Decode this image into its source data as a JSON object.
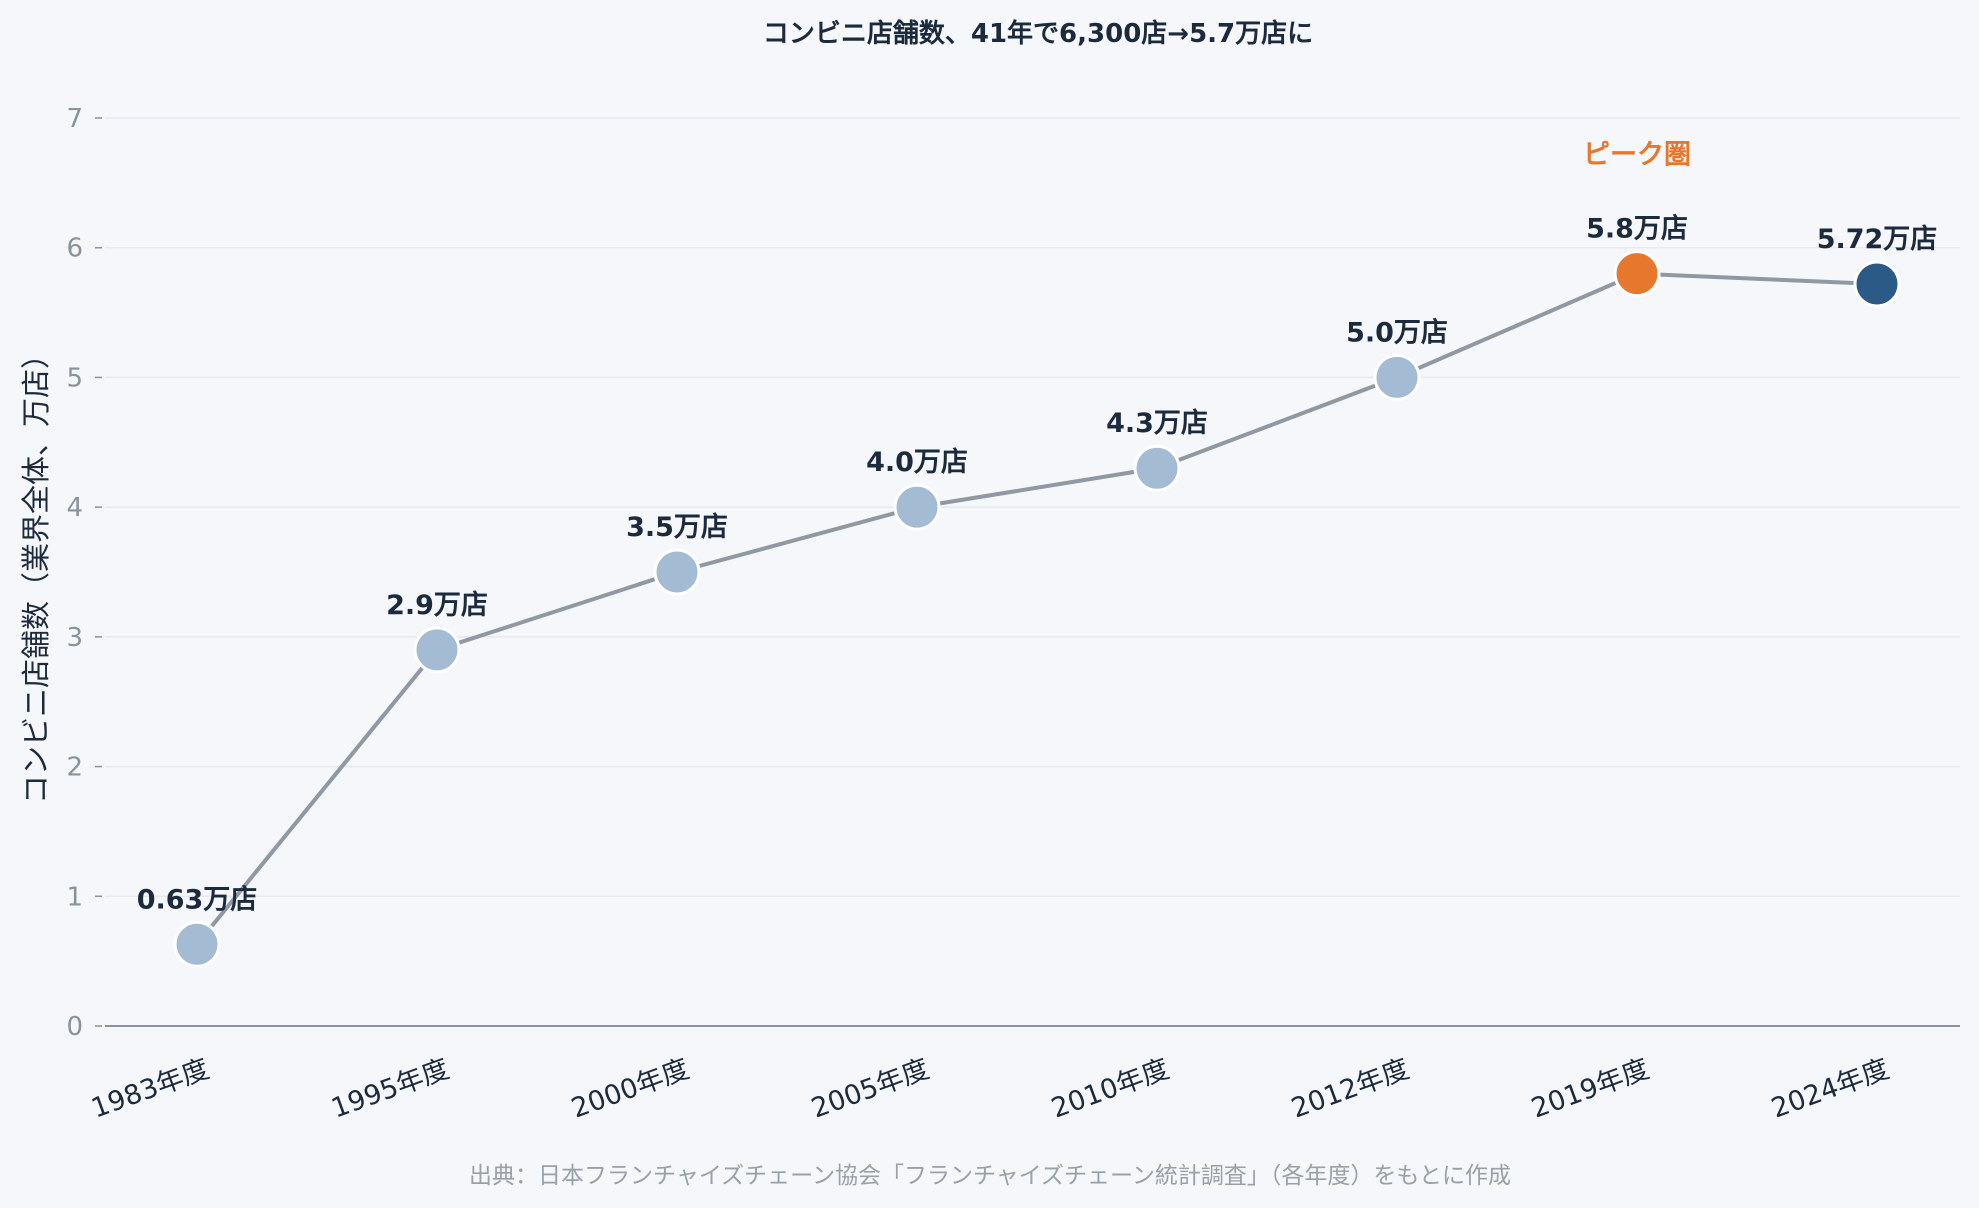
{
  "chart_data": {
    "type": "line",
    "title": "コンビニ店舗数、41年で6,300店→5.7万店に",
    "ylabel": "コンビニ店舗数（業界全体、万店）",
    "xlabel": "",
    "categories": [
      "1983年度",
      "1995年度",
      "2000年度",
      "2005年度",
      "2010年度",
      "2012年度",
      "2019年度",
      "2024年度"
    ],
    "values": [
      0.63,
      2.9,
      3.5,
      4.0,
      4.3,
      5.0,
      5.8,
      5.72
    ],
    "data_labels": [
      "0.63万店",
      "2.9万店",
      "3.5万店",
      "4.0万店",
      "4.3万店",
      "5.0万店",
      "5.8万店",
      "5.72万店"
    ],
    "ylim": [
      0,
      7
    ],
    "yticks": [
      0,
      1,
      2,
      3,
      4,
      5,
      6,
      7
    ],
    "grid": true,
    "annotation": {
      "text": "ピーク圏",
      "category": "2019年度",
      "color": "#e8772e"
    },
    "colors": {
      "line": "#8f98a3",
      "point_default": "#a3bcd4",
      "point_peak": "#e8772e",
      "point_latest": "#2c5a87",
      "grid": "#e6e9ee",
      "axis": "#8a929c"
    },
    "point_colors": [
      "default",
      "default",
      "default",
      "default",
      "default",
      "default",
      "peak",
      "latest"
    ]
  },
  "source": "出典：日本フランチャイズチェーン協会「フランチャイズチェーン統計調査」（各年度）をもとに作成"
}
